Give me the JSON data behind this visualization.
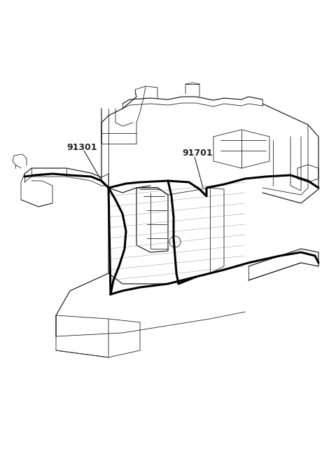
{
  "bg_color": "#ffffff",
  "line_color": "#222222",
  "thick_color": "#000000",
  "label_91301": "91301",
  "label_91701": "91701",
  "fig_width": 4.8,
  "fig_height": 6.55,
  "dpi": 100,
  "lw_thin": 0.6,
  "lw_med": 0.9,
  "lw_thick": 2.2
}
